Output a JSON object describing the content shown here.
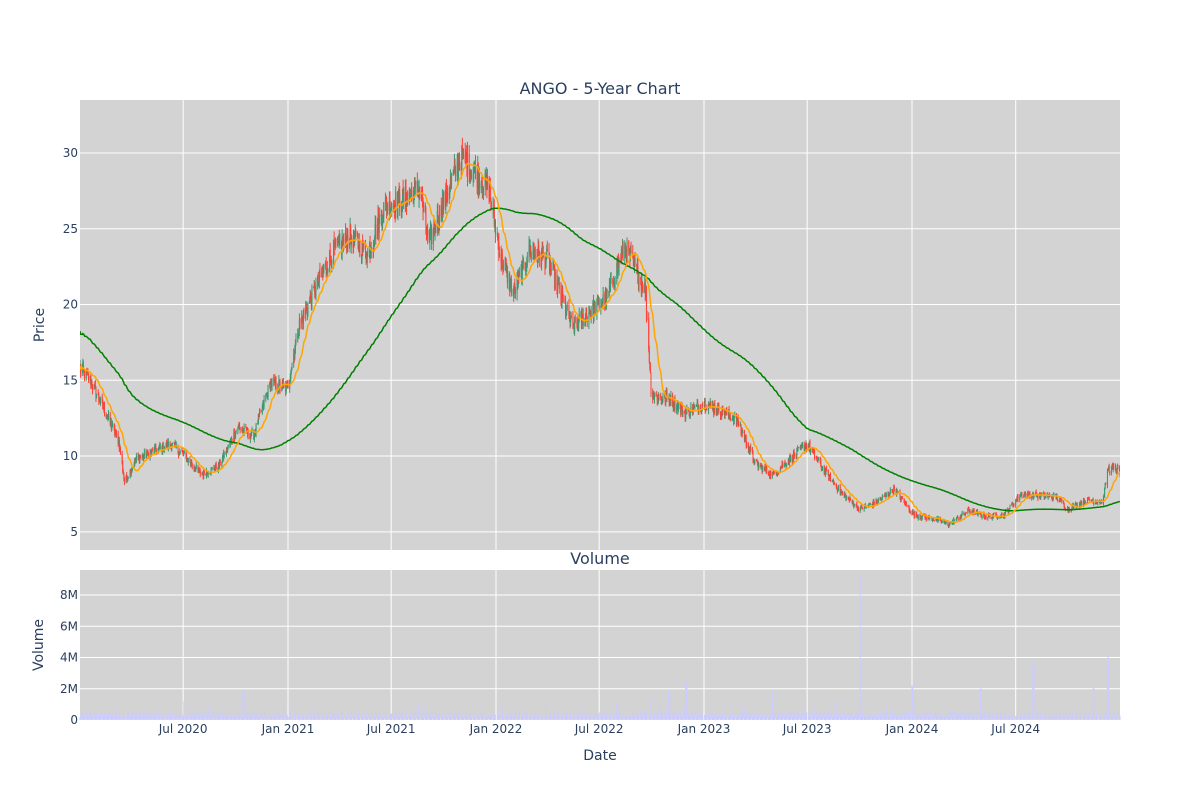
{
  "chart_data": {
    "type": "candlestick",
    "title": "ANGO - 5-Year Chart",
    "panels": {
      "price": {
        "ylabel": "Price",
        "ylim": [
          3.8,
          33.5
        ],
        "yticks": [
          5,
          10,
          15,
          20,
          25,
          30
        ],
        "grid": true,
        "background": "#d3d3d3"
      },
      "volume": {
        "title": "Volume",
        "ylabel": "Volume",
        "ylim": [
          0,
          9600000
        ],
        "yticks": [
          0,
          2000000,
          4000000,
          6000000,
          8000000
        ],
        "ytick_labels": [
          "0",
          "2M",
          "4M",
          "6M",
          "8M"
        ],
        "grid": true,
        "background": "#d3d3d3"
      }
    },
    "xlabel": "Date",
    "xrange": [
      "2020-01-02",
      "2024-12-31"
    ],
    "xticks": [
      "2020-07-01",
      "2021-01-01",
      "2021-07-01",
      "2022-01-01",
      "2022-07-01",
      "2023-01-01",
      "2023-07-01",
      "2024-01-01",
      "2024-07-01"
    ],
    "xtick_labels": [
      "Jul 2020",
      "Jan 2021",
      "Jul 2021",
      "Jan 2022",
      "Jul 2022",
      "Jan 2023",
      "Jul 2023",
      "Jan 2024",
      "Jul 2024"
    ],
    "colors": {
      "increasing": "#3d9970",
      "decreasing": "#ff4136",
      "ma_short": "#ffa500",
      "ma_long": "#008000",
      "volume": "#ccccff",
      "text": "#2a3f5f",
      "grid": "#ffffff"
    },
    "price_path": [
      [
        "2020-01-02",
        15.8
      ],
      [
        "2020-01-20",
        15.0
      ],
      [
        "2020-02-20",
        12.5
      ],
      [
        "2020-03-10",
        11.0
      ],
      [
        "2020-03-20",
        8.3
      ],
      [
        "2020-04-10",
        9.8
      ],
      [
        "2020-05-10",
        10.3
      ],
      [
        "2020-06-10",
        10.8
      ],
      [
        "2020-07-01",
        10.1
      ],
      [
        "2020-08-01",
        8.8
      ],
      [
        "2020-09-01",
        9.3
      ],
      [
        "2020-10-05",
        11.9
      ],
      [
        "2020-11-01",
        11.3
      ],
      [
        "2020-12-01",
        14.8
      ],
      [
        "2020-12-31",
        14.5
      ],
      [
        "2021-01-20",
        18.6
      ],
      [
        "2021-02-20",
        21.2
      ],
      [
        "2021-03-20",
        23.5
      ],
      [
        "2021-04-20",
        24.5
      ],
      [
        "2021-05-20",
        23.3
      ],
      [
        "2021-06-20",
        26.6
      ],
      [
        "2021-07-20",
        26.9
      ],
      [
        "2021-08-20",
        27.7
      ],
      [
        "2021-09-05",
        24.0
      ],
      [
        "2021-10-01",
        26.8
      ],
      [
        "2021-11-01",
        29.7
      ],
      [
        "2021-12-01",
        28.5
      ],
      [
        "2021-12-20",
        27.5
      ],
      [
        "2022-01-10",
        23.0
      ],
      [
        "2022-02-01",
        20.8
      ],
      [
        "2022-03-01",
        23.5
      ],
      [
        "2022-04-01",
        23.0
      ],
      [
        "2022-05-15",
        18.5
      ],
      [
        "2022-06-15",
        19.5
      ],
      [
        "2022-07-15",
        20.5
      ],
      [
        "2022-08-15",
        23.8
      ],
      [
        "2022-09-20",
        21.0
      ],
      [
        "2022-10-01",
        14.0
      ],
      [
        "2022-11-01",
        13.8
      ],
      [
        "2022-12-01",
        12.8
      ],
      [
        "2023-01-01",
        13.5
      ],
      [
        "2023-02-01",
        13.0
      ],
      [
        "2023-03-01",
        12.3
      ],
      [
        "2023-04-01",
        9.5
      ],
      [
        "2023-05-01",
        8.8
      ],
      [
        "2023-06-01",
        9.8
      ],
      [
        "2023-07-01",
        10.8
      ],
      [
        "2023-08-01",
        9.0
      ],
      [
        "2023-09-01",
        7.5
      ],
      [
        "2023-10-01",
        6.5
      ],
      [
        "2023-11-01",
        7.0
      ],
      [
        "2023-12-01",
        7.8
      ],
      [
        "2024-01-05",
        6.1
      ],
      [
        "2024-02-05",
        5.9
      ],
      [
        "2024-03-05",
        5.5
      ],
      [
        "2024-04-10",
        6.4
      ],
      [
        "2024-05-10",
        6.0
      ],
      [
        "2024-06-10",
        6.1
      ],
      [
        "2024-07-10",
        7.5
      ],
      [
        "2024-08-10",
        7.4
      ],
      [
        "2024-09-10",
        7.3
      ],
      [
        "2024-10-01",
        6.5
      ],
      [
        "2024-11-01",
        7.1
      ],
      [
        "2024-12-01",
        7.0
      ],
      [
        "2024-12-10",
        9.2
      ],
      [
        "2024-12-31",
        9.0
      ]
    ],
    "volume_spikes": [
      [
        "2020-10-15",
        1900000
      ],
      [
        "2022-10-01",
        1600000
      ],
      [
        "2022-11-01",
        1900000
      ],
      [
        "2022-12-01",
        2500000
      ],
      [
        "2023-05-01",
        1800000
      ],
      [
        "2023-10-01",
        9200000
      ],
      [
        "2024-01-01",
        2200000
      ],
      [
        "2024-05-01",
        2000000
      ],
      [
        "2024-08-01",
        3600000
      ],
      [
        "2024-11-15",
        2100000
      ],
      [
        "2024-12-10",
        4000000
      ]
    ]
  }
}
